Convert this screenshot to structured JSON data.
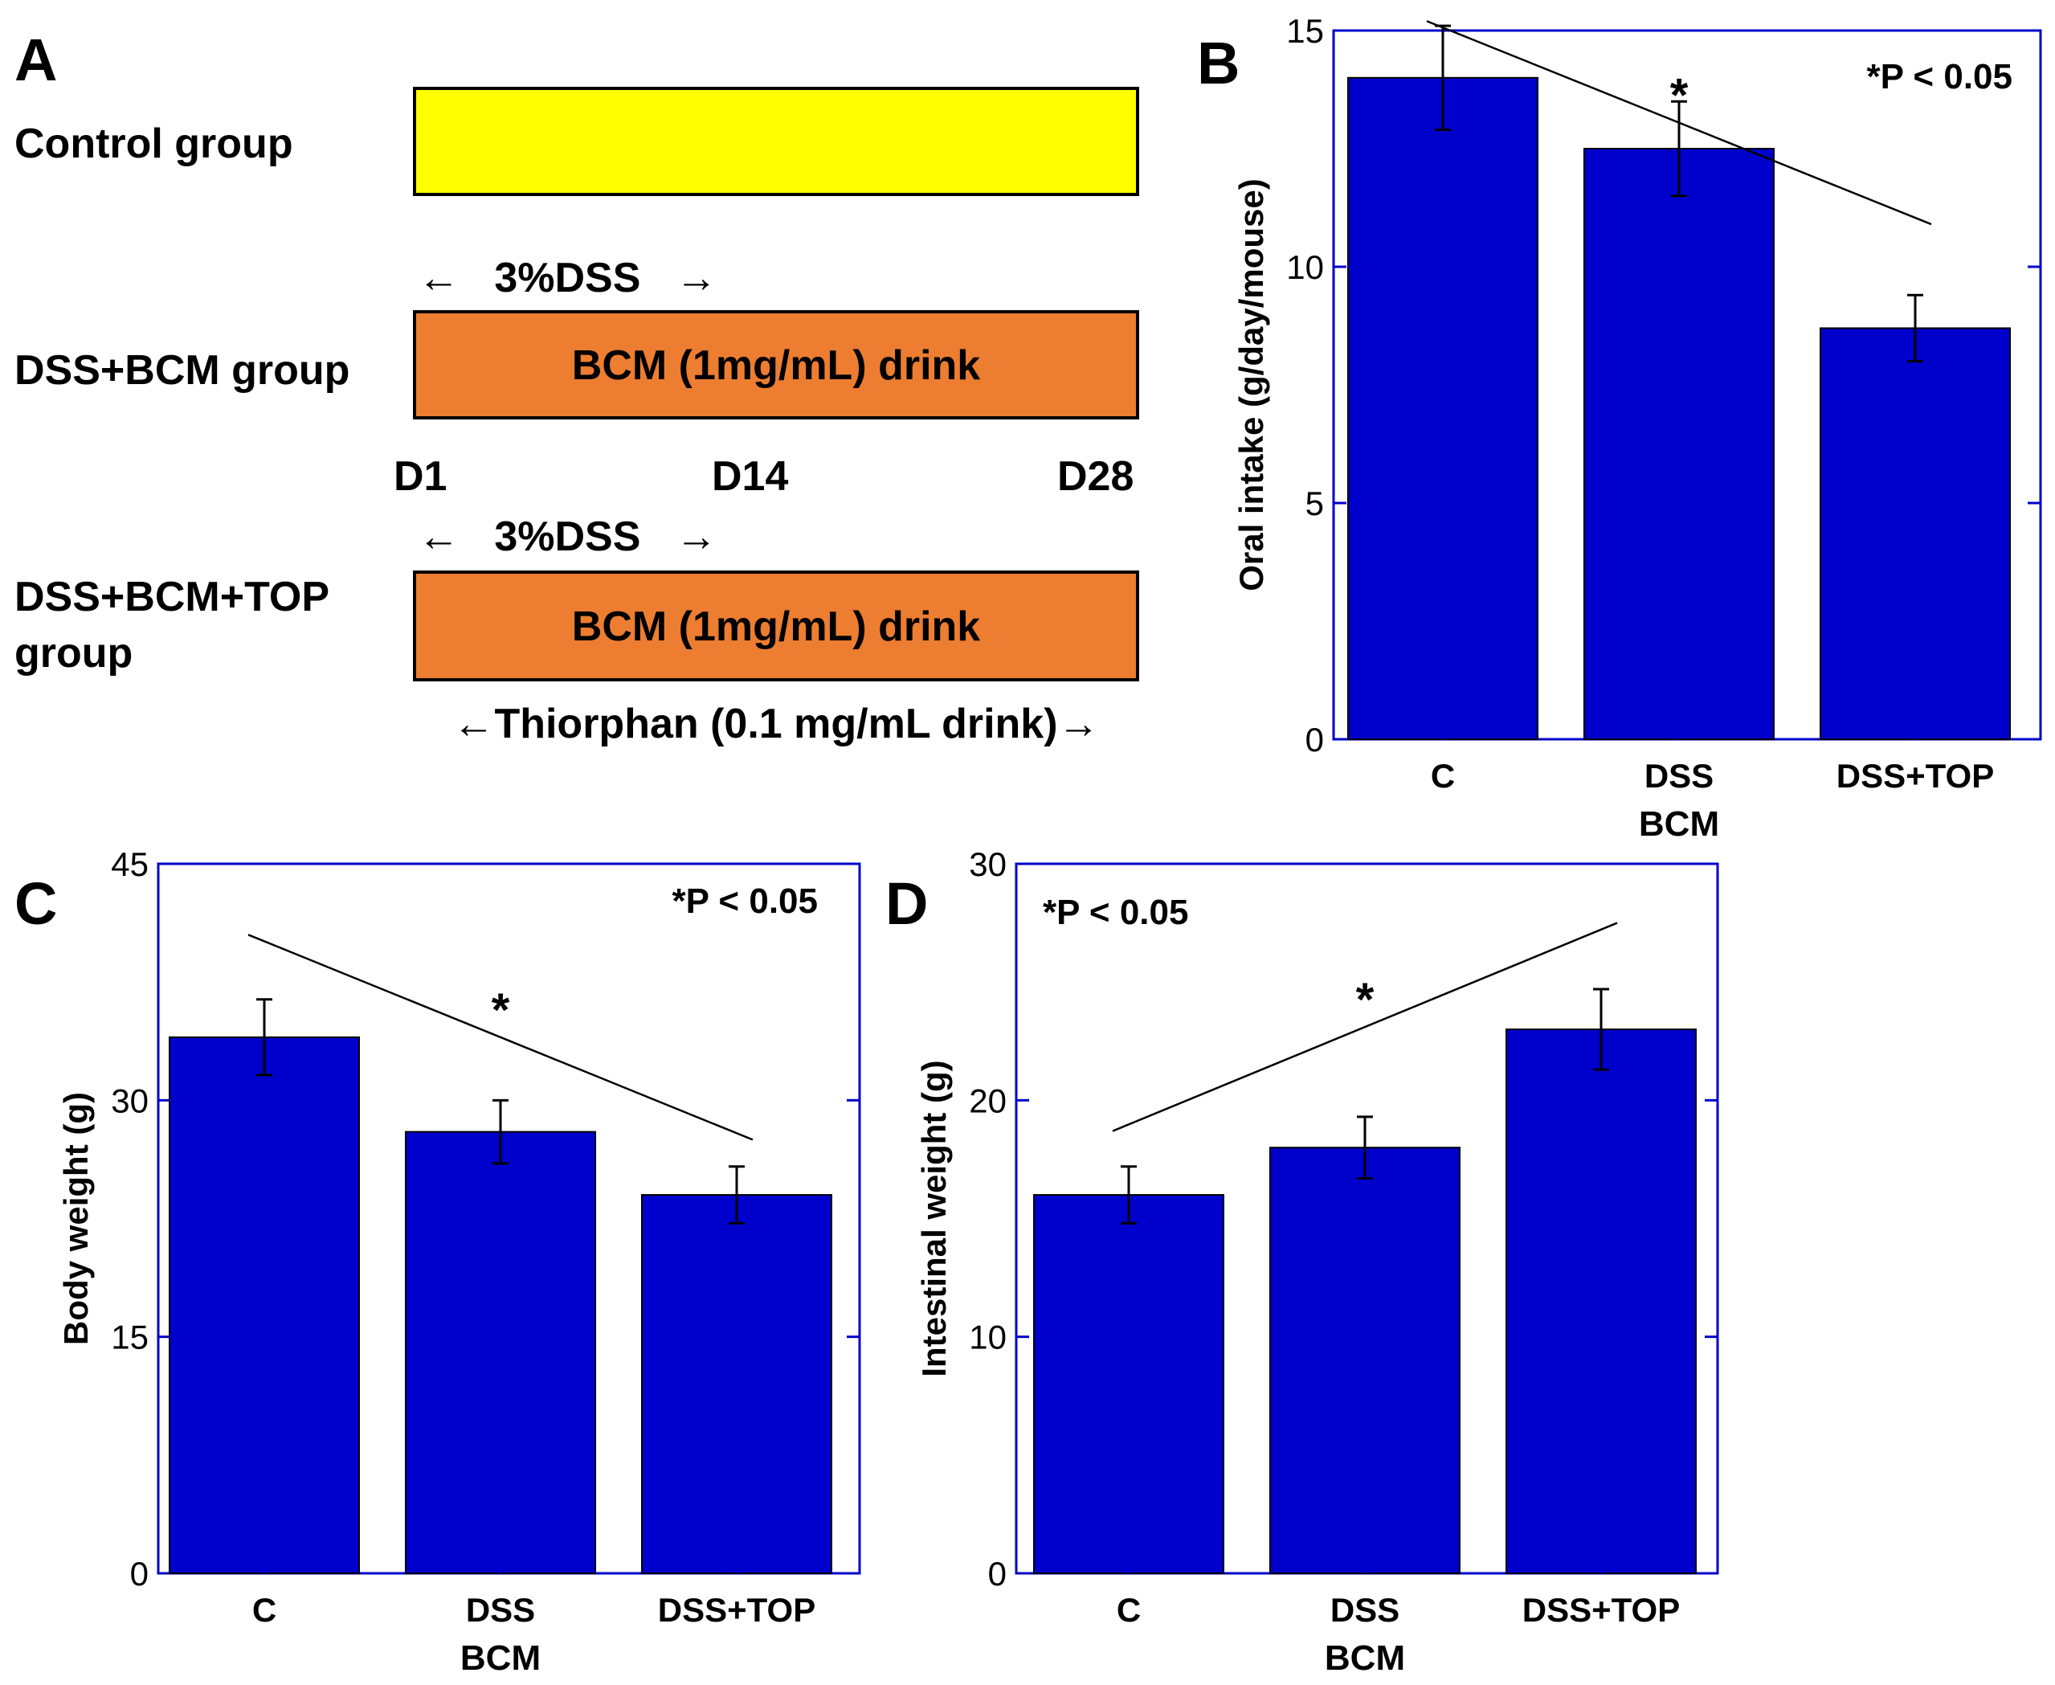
{
  "panel_labels": {
    "a": "A",
    "b": "B",
    "c": "C",
    "d": "D"
  },
  "protocol": {
    "groups": [
      {
        "label_lines": [
          "Control group"
        ],
        "bar_text": "",
        "color": "#FFFF00"
      },
      {
        "label_lines": [
          "DSS+BCM group"
        ],
        "bar_text": "BCM (1mg/mL) drink",
        "color": "#ED7D31"
      },
      {
        "label_lines": [
          "DSS+BCM+TOP",
          "group"
        ],
        "bar_text": "BCM (1mg/mL) drink",
        "color": "#ED7D31"
      }
    ],
    "dss_label_1": "←   3%DSS   →",
    "dss_label_2": "←   3%DSS   →",
    "days": [
      "D1",
      "D14",
      "D28"
    ],
    "thiorphan_label": "←Thiorphan (0.1 mg/mL drink)→"
  },
  "chart_data": [
    {
      "panel": "B",
      "type": "bar",
      "categories": [
        "C",
        "DSS",
        "DSS+TOP"
      ],
      "values": [
        14.0,
        12.5,
        8.7
      ],
      "errors": [
        1.1,
        1.0,
        0.7
      ],
      "xlabel": "BCM",
      "ylabel": "Oral intake (g/day/mouse)",
      "ylim": [
        0,
        15
      ],
      "yticks": [
        0,
        5,
        10,
        15
      ],
      "annotation": "*P < 0.05",
      "significance_line": {
        "from_category": 0,
        "to_category": 2,
        "start_value": 15.2,
        "end_value": 10.9,
        "label": "*"
      },
      "bar_color": "#0000CC"
    },
    {
      "panel": "C",
      "type": "bar",
      "categories": [
        "C",
        "DSS",
        "DSS+TOP"
      ],
      "values": [
        34.0,
        28.0,
        24.0
      ],
      "errors": [
        2.4,
        2.0,
        1.8
      ],
      "xlabel": "BCM",
      "ylabel": "Body weight (g)",
      "ylim": [
        0,
        45
      ],
      "yticks": [
        0,
        15,
        30,
        45
      ],
      "annotation": "*P < 0.05",
      "significance_line": {
        "from_category": 0,
        "to_category": 2,
        "start_value": 40.5,
        "end_value": 27.5,
        "label": "*"
      },
      "bar_color": "#0000CC"
    },
    {
      "panel": "D",
      "type": "bar",
      "categories": [
        "C",
        "DSS",
        "DSS+TOP"
      ],
      "values": [
        16.0,
        18.0,
        23.0
      ],
      "errors": [
        1.2,
        1.3,
        1.7
      ],
      "xlabel": "BCM",
      "ylabel": "Intestinal weight (g)",
      "ylim": [
        0,
        30
      ],
      "yticks": [
        0,
        10,
        20,
        30
      ],
      "annotation": "*P < 0.05",
      "significance_line": {
        "from_category": 0,
        "to_category": 2,
        "start_value": 18.7,
        "end_value": 27.5,
        "label": "*"
      },
      "bar_color": "#0000CC"
    }
  ]
}
